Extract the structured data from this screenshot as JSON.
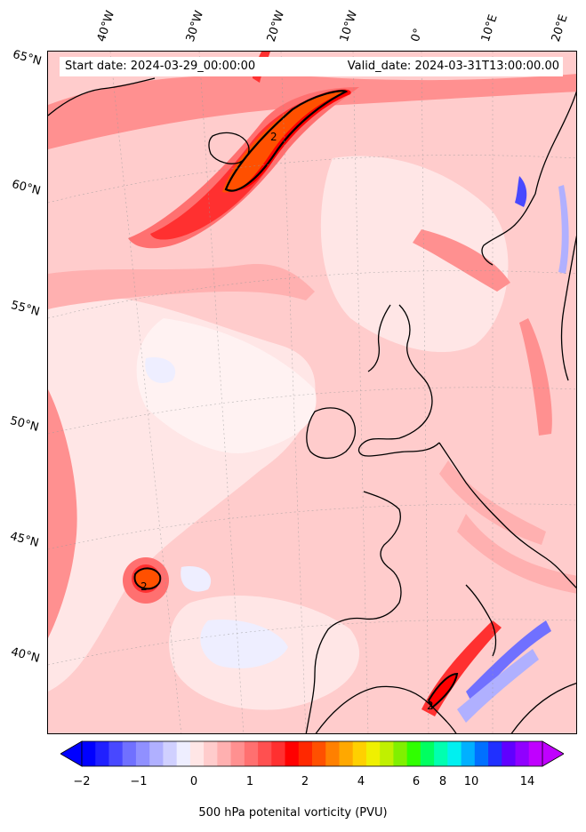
{
  "header": {
    "start_date": "Start date: 2024-03-29_00:00:00",
    "valid_date": "Valid_date: 2024-03-31T13:00:00.00"
  },
  "map": {
    "projection": "conic",
    "longitude_labels": [
      "40°W",
      "30°W",
      "20°W",
      "10°W",
      "0°",
      "10°E",
      "20°E"
    ],
    "latitude_labels": [
      "65°N",
      "60°N",
      "55°N",
      "50°N",
      "45°N",
      "40°N"
    ],
    "contour_value_label": "2",
    "coastline_color": "#000000",
    "field": "500 hPa potential vorticity"
  },
  "colorbar": {
    "tick_labels": [
      "−2",
      "−1",
      "0",
      "1",
      "2",
      "4",
      "6",
      "8",
      "10",
      "14"
    ],
    "title": "500 hPa potenital vorticity (PVU)",
    "colors": [
      "#0000ff",
      "#2020ff",
      "#4848ff",
      "#7070ff",
      "#9090ff",
      "#b0b0ff",
      "#d0d0ff",
      "#eeeeff",
      "#ffe6e6",
      "#ffcccc",
      "#ffb0b0",
      "#ff9090",
      "#ff7070",
      "#ff5050",
      "#ff3030",
      "#ff0000",
      "#ff2800",
      "#ff5000",
      "#ff8000",
      "#ffa800",
      "#ffd000",
      "#f0f000",
      "#c0f000",
      "#80f000",
      "#30ff00",
      "#00ff60",
      "#00ffb0",
      "#00f0f0",
      "#00b0ff",
      "#0070ff",
      "#2030ff",
      "#6000ff",
      "#9000ff",
      "#c000ff"
    ]
  }
}
